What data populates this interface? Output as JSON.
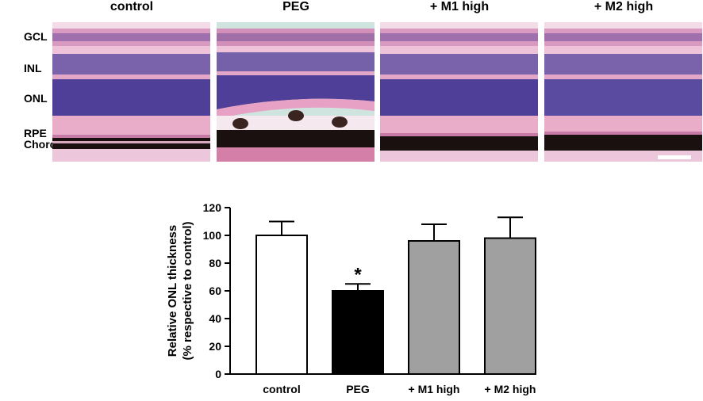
{
  "panels": [
    {
      "title": "control"
    },
    {
      "title": "PEG"
    },
    {
      "title": "+ M1 high"
    },
    {
      "title": "+ M2 high"
    }
  ],
  "layer_labels": [
    "GCL",
    "INL",
    "ONL",
    "RPE",
    "Choroid"
  ],
  "colors": {
    "bar_control": "#ffffff",
    "bar_peg": "#000000",
    "bar_treatment": "#a0a0a0",
    "tissue_pink": "#e7a9c8",
    "tissue_purple": "#5a4ba0",
    "pigment_dark": "#1a1010"
  },
  "chart_data": {
    "type": "bar",
    "categories": [
      "control",
      "PEG",
      "+ M1 high",
      "+ M2 high"
    ],
    "values": [
      100,
      60,
      96,
      98
    ],
    "errors": [
      10,
      5,
      12,
      15
    ],
    "significance": [
      "",
      "*",
      "",
      ""
    ],
    "ylabel_line1": "Relative ONL thickness",
    "ylabel_line2": "(% respective to control)",
    "ylim": [
      0,
      120
    ],
    "yticks": [
      0,
      20,
      40,
      60,
      80,
      100,
      120
    ],
    "grid": false
  }
}
